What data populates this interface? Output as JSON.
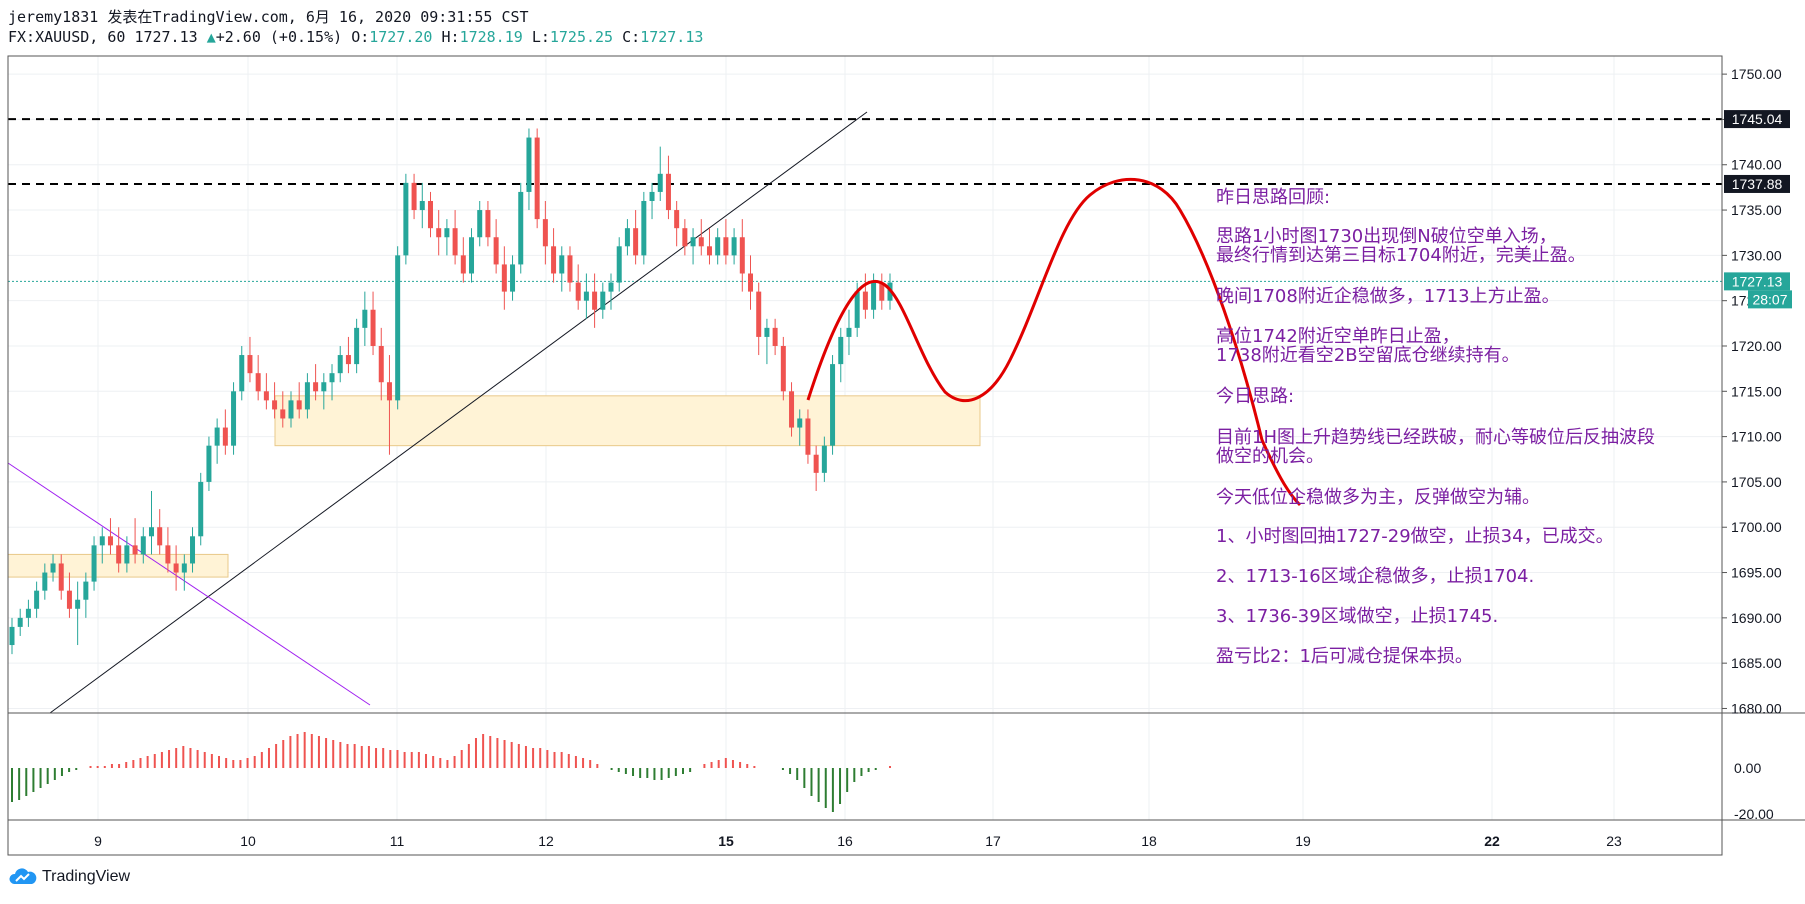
{
  "header": {
    "line1": "jeremy1831 发表在TradingView.com, 6月 16, 2020 09:31:55 CST",
    "symbol": "FX:XAUUSD, 60",
    "last": "1727.13",
    "arrow": "▲",
    "change": "+2.60 (+0.15%)",
    "o_label": "O:",
    "o": "1727.20",
    "h_label": "H:",
    "h": "1728.19",
    "l_label": "L:",
    "l": "1725.25",
    "c_label": "C:",
    "c": "1727.13"
  },
  "brand": "TradingView",
  "colors": {
    "up": "#26a69a",
    "down": "#ef5350",
    "macd_up": "#ef5350",
    "macd_down": "#2e7d32",
    "annotation": "#7b1fa2",
    "curve": "#e00000",
    "zone": "#fff3d6"
  },
  "chart_data": {
    "type": "candlestick",
    "yaxis_ticks": [
      "1750.00",
      "1745.00",
      "1740.00",
      "1735.00",
      "1730.00",
      "1725.00",
      "1720.00",
      "1715.00",
      "1710.00",
      "1705.00",
      "1700.00",
      "1695.00",
      "1690.00",
      "1685.00",
      "1680.00"
    ],
    "ylim": [
      1679.5,
      1752
    ],
    "xaxis_ticks": [
      "9",
      "10",
      "11",
      "12",
      "15",
      "16",
      "17",
      "18",
      "19",
      "22",
      "23"
    ],
    "price_labels": [
      {
        "value": 1745.04,
        "label": "1745.04",
        "style": "dark"
      },
      {
        "value": 1737.88,
        "label": "1737.88",
        "style": "dark"
      },
      {
        "value": 1727.13,
        "label": "1727.13",
        "style": "teal"
      }
    ],
    "countdown": "28:07",
    "horizontal_lines": [
      1745.04,
      1737.88
    ],
    "zones": [
      {
        "from": 1694.5,
        "to": 1697
      },
      {
        "from": 1709,
        "to": 1714.5
      }
    ],
    "macd_ticks": [
      "0.00",
      "-20.00"
    ],
    "candles": [
      {
        "o": 1687,
        "h": 1690,
        "l": 1686,
        "c": 1689
      },
      {
        "o": 1689,
        "h": 1691,
        "l": 1688,
        "c": 1690
      },
      {
        "o": 1690,
        "h": 1692,
        "l": 1689,
        "c": 1691
      },
      {
        "o": 1691,
        "h": 1694,
        "l": 1690,
        "c": 1693
      },
      {
        "o": 1693,
        "h": 1696,
        "l": 1692,
        "c": 1695
      },
      {
        "o": 1695,
        "h": 1697,
        "l": 1694,
        "c": 1696
      },
      {
        "o": 1696,
        "h": 1697,
        "l": 1692,
        "c": 1693
      },
      {
        "o": 1693,
        "h": 1695,
        "l": 1690,
        "c": 1691
      },
      {
        "o": 1691,
        "h": 1694,
        "l": 1687,
        "c": 1692
      },
      {
        "o": 1692,
        "h": 1695,
        "l": 1690,
        "c": 1694
      },
      {
        "o": 1694,
        "h": 1699,
        "l": 1693,
        "c": 1698
      },
      {
        "o": 1698,
        "h": 1700,
        "l": 1696,
        "c": 1699
      },
      {
        "o": 1699,
        "h": 1701,
        "l": 1697,
        "c": 1698
      },
      {
        "o": 1698,
        "h": 1700,
        "l": 1695,
        "c": 1696
      },
      {
        "o": 1696,
        "h": 1699,
        "l": 1695,
        "c": 1698
      },
      {
        "o": 1698,
        "h": 1701,
        "l": 1696,
        "c": 1697
      },
      {
        "o": 1697,
        "h": 1700,
        "l": 1696,
        "c": 1699
      },
      {
        "o": 1699,
        "h": 1704,
        "l": 1697,
        "c": 1700
      },
      {
        "o": 1700,
        "h": 1702,
        "l": 1697,
        "c": 1698
      },
      {
        "o": 1698,
        "h": 1700,
        "l": 1695,
        "c": 1696
      },
      {
        "o": 1696,
        "h": 1698,
        "l": 1693,
        "c": 1695
      },
      {
        "o": 1695,
        "h": 1697,
        "l": 1693,
        "c": 1696
      },
      {
        "o": 1696,
        "h": 1700,
        "l": 1695,
        "c": 1699
      },
      {
        "o": 1699,
        "h": 1706,
        "l": 1698,
        "c": 1705
      },
      {
        "o": 1705,
        "h": 1710,
        "l": 1704,
        "c": 1709
      },
      {
        "o": 1709,
        "h": 1712,
        "l": 1707,
        "c": 1711
      },
      {
        "o": 1711,
        "h": 1713,
        "l": 1708,
        "c": 1709
      },
      {
        "o": 1709,
        "h": 1716,
        "l": 1708,
        "c": 1715
      },
      {
        "o": 1715,
        "h": 1720,
        "l": 1714,
        "c": 1719
      },
      {
        "o": 1719,
        "h": 1721,
        "l": 1716,
        "c": 1717
      },
      {
        "o": 1717,
        "h": 1719,
        "l": 1714,
        "c": 1715
      },
      {
        "o": 1715,
        "h": 1717,
        "l": 1713,
        "c": 1714
      },
      {
        "o": 1714,
        "h": 1716,
        "l": 1712,
        "c": 1713
      },
      {
        "o": 1713,
        "h": 1715,
        "l": 1711,
        "c": 1712
      },
      {
        "o": 1712,
        "h": 1715,
        "l": 1711,
        "c": 1714
      },
      {
        "o": 1714,
        "h": 1716,
        "l": 1712,
        "c": 1713
      },
      {
        "o": 1713,
        "h": 1717,
        "l": 1712,
        "c": 1716
      },
      {
        "o": 1716,
        "h": 1718,
        "l": 1714,
        "c": 1715
      },
      {
        "o": 1715,
        "h": 1717,
        "l": 1713,
        "c": 1716
      },
      {
        "o": 1716,
        "h": 1718,
        "l": 1714,
        "c": 1717
      },
      {
        "o": 1717,
        "h": 1720,
        "l": 1716,
        "c": 1719
      },
      {
        "o": 1719,
        "h": 1721,
        "l": 1717,
        "c": 1718
      },
      {
        "o": 1718,
        "h": 1723,
        "l": 1717,
        "c": 1722
      },
      {
        "o": 1722,
        "h": 1726,
        "l": 1720,
        "c": 1724
      },
      {
        "o": 1724,
        "h": 1726,
        "l": 1719,
        "c": 1720
      },
      {
        "o": 1720,
        "h": 1722,
        "l": 1714,
        "c": 1716
      },
      {
        "o": 1716,
        "h": 1719,
        "l": 1708,
        "c": 1714
      },
      {
        "o": 1714,
        "h": 1731,
        "l": 1713,
        "c": 1730
      },
      {
        "o": 1730,
        "h": 1739,
        "l": 1729,
        "c": 1738
      },
      {
        "o": 1738,
        "h": 1739,
        "l": 1734,
        "c": 1735
      },
      {
        "o": 1735,
        "h": 1738,
        "l": 1733,
        "c": 1736
      },
      {
        "o": 1736,
        "h": 1737,
        "l": 1732,
        "c": 1733
      },
      {
        "o": 1733,
        "h": 1735,
        "l": 1730,
        "c": 1732
      },
      {
        "o": 1732,
        "h": 1734,
        "l": 1730,
        "c": 1733
      },
      {
        "o": 1733,
        "h": 1735,
        "l": 1729,
        "c": 1730
      },
      {
        "o": 1730,
        "h": 1732,
        "l": 1727,
        "c": 1728
      },
      {
        "o": 1728,
        "h": 1733,
        "l": 1727,
        "c": 1732
      },
      {
        "o": 1732,
        "h": 1736,
        "l": 1731,
        "c": 1735
      },
      {
        "o": 1735,
        "h": 1736,
        "l": 1731,
        "c": 1732
      },
      {
        "o": 1732,
        "h": 1734,
        "l": 1728,
        "c": 1729
      },
      {
        "o": 1729,
        "h": 1731,
        "l": 1724,
        "c": 1726
      },
      {
        "o": 1726,
        "h": 1730,
        "l": 1725,
        "c": 1729
      },
      {
        "o": 1729,
        "h": 1738,
        "l": 1728,
        "c": 1737
      },
      {
        "o": 1737,
        "h": 1744,
        "l": 1735,
        "c": 1743
      },
      {
        "o": 1743,
        "h": 1744,
        "l": 1733,
        "c": 1734
      },
      {
        "o": 1734,
        "h": 1736,
        "l": 1729,
        "c": 1731
      },
      {
        "o": 1731,
        "h": 1733,
        "l": 1727,
        "c": 1728
      },
      {
        "o": 1728,
        "h": 1731,
        "l": 1726,
        "c": 1730
      },
      {
        "o": 1730,
        "h": 1731,
        "l": 1726,
        "c": 1727
      },
      {
        "o": 1727,
        "h": 1729,
        "l": 1724,
        "c": 1725
      },
      {
        "o": 1725,
        "h": 1728,
        "l": 1723,
        "c": 1726
      },
      {
        "o": 1726,
        "h": 1728,
        "l": 1722,
        "c": 1724
      },
      {
        "o": 1724,
        "h": 1727,
        "l": 1723,
        "c": 1726
      },
      {
        "o": 1726,
        "h": 1728,
        "l": 1724,
        "c": 1727
      },
      {
        "o": 1727,
        "h": 1732,
        "l": 1726,
        "c": 1731
      },
      {
        "o": 1731,
        "h": 1734,
        "l": 1730,
        "c": 1733
      },
      {
        "o": 1733,
        "h": 1735,
        "l": 1729,
        "c": 1730
      },
      {
        "o": 1730,
        "h": 1737,
        "l": 1729,
        "c": 1736
      },
      {
        "o": 1736,
        "h": 1738,
        "l": 1734,
        "c": 1737
      },
      {
        "o": 1737,
        "h": 1742,
        "l": 1736,
        "c": 1739
      },
      {
        "o": 1739,
        "h": 1741,
        "l": 1734,
        "c": 1735
      },
      {
        "o": 1735,
        "h": 1736,
        "l": 1731,
        "c": 1733
      },
      {
        "o": 1733,
        "h": 1734,
        "l": 1730,
        "c": 1731
      },
      {
        "o": 1731,
        "h": 1733,
        "l": 1729,
        "c": 1732
      },
      {
        "o": 1732,
        "h": 1734,
        "l": 1730,
        "c": 1731
      },
      {
        "o": 1731,
        "h": 1733,
        "l": 1729,
        "c": 1730
      },
      {
        "o": 1730,
        "h": 1733,
        "l": 1729,
        "c": 1732
      },
      {
        "o": 1732,
        "h": 1734,
        "l": 1729,
        "c": 1730
      },
      {
        "o": 1730,
        "h": 1733,
        "l": 1729,
        "c": 1732
      },
      {
        "o": 1732,
        "h": 1734,
        "l": 1726,
        "c": 1728
      },
      {
        "o": 1728,
        "h": 1730,
        "l": 1724,
        "c": 1726
      },
      {
        "o": 1726,
        "h": 1727,
        "l": 1719,
        "c": 1721
      },
      {
        "o": 1721,
        "h": 1723,
        "l": 1718,
        "c": 1722
      },
      {
        "o": 1722,
        "h": 1723,
        "l": 1719,
        "c": 1720
      },
      {
        "o": 1720,
        "h": 1721,
        "l": 1714,
        "c": 1715
      },
      {
        "o": 1715,
        "h": 1716,
        "l": 1710,
        "c": 1711
      },
      {
        "o": 1711,
        "h": 1713,
        "l": 1709,
        "c": 1712
      },
      {
        "o": 1712,
        "h": 1713,
        "l": 1707,
        "c": 1708
      },
      {
        "o": 1708,
        "h": 1709,
        "l": 1704,
        "c": 1706
      },
      {
        "o": 1706,
        "h": 1710,
        "l": 1705,
        "c": 1709
      },
      {
        "o": 1709,
        "h": 1719,
        "l": 1708,
        "c": 1718
      },
      {
        "o": 1718,
        "h": 1722,
        "l": 1716,
        "c": 1721
      },
      {
        "o": 1721,
        "h": 1724,
        "l": 1719,
        "c": 1722
      },
      {
        "o": 1722,
        "h": 1727,
        "l": 1721,
        "c": 1726
      },
      {
        "o": 1726,
        "h": 1728,
        "l": 1723,
        "c": 1724
      },
      {
        "o": 1724,
        "h": 1728,
        "l": 1723,
        "c": 1727
      },
      {
        "o": 1727,
        "h": 1728,
        "l": 1724,
        "c": 1725
      },
      {
        "o": 1725,
        "h": 1728,
        "l": 1724,
        "c": 1727
      }
    ],
    "macd": [
      -17,
      -16,
      -14,
      -12,
      -10,
      -8,
      -6,
      -4,
      -2,
      -1,
      0,
      1,
      1,
      1,
      2,
      2,
      3,
      4,
      5,
      6,
      7,
      8,
      9,
      10,
      11,
      10,
      9,
      8,
      7,
      6,
      5,
      4,
      4,
      5,
      6,
      8,
      10,
      12,
      14,
      16,
      17,
      18,
      17,
      16,
      15,
      14,
      13,
      12,
      12,
      11,
      11,
      10,
      10,
      9,
      9,
      8,
      8,
      8,
      7,
      6,
      5,
      4,
      6,
      9,
      12,
      15,
      17,
      16,
      15,
      14,
      13,
      12,
      11,
      10,
      10,
      9,
      8,
      8,
      7,
      6,
      5,
      4,
      2,
      0,
      -1,
      -2,
      -3,
      -4,
      -5,
      -5,
      -6,
      -6,
      -5,
      -4,
      -3,
      -2,
      0,
      2,
      3,
      4,
      5,
      4,
      3,
      2,
      1,
      0,
      0,
      0,
      -1,
      -3,
      -6,
      -10,
      -14,
      -17,
      -20,
      -22,
      -18,
      -12,
      -7,
      -4,
      -2,
      -1,
      0,
      1
    ]
  },
  "notes": [
    "昨日思路回顾:",
    "思路1小时图1730出现倒N破位空单入场，",
    "最终行情到达第三目标1704附近，完美止盈。",
    "晚间1708附近企稳做多，1713上方止盈。",
    "高位1742附近空单昨日止盈，",
    "1738附近看空2B空留底仓继续持有。",
    "今日思路:",
    "目前1H图上升趋势线已经跌破，耐心等破位后反抽波段",
    "做空的机会。",
    "今天低位企稳做多为主，反弹做空为辅。",
    "1、小时图回抽1727-29做空，止损34，已成交。",
    "2、1713-16区域企稳做多，止损1704.",
    "3、1736-39区域做空，止损1745.",
    "盈亏比2：1后可减仓提保本损。"
  ]
}
